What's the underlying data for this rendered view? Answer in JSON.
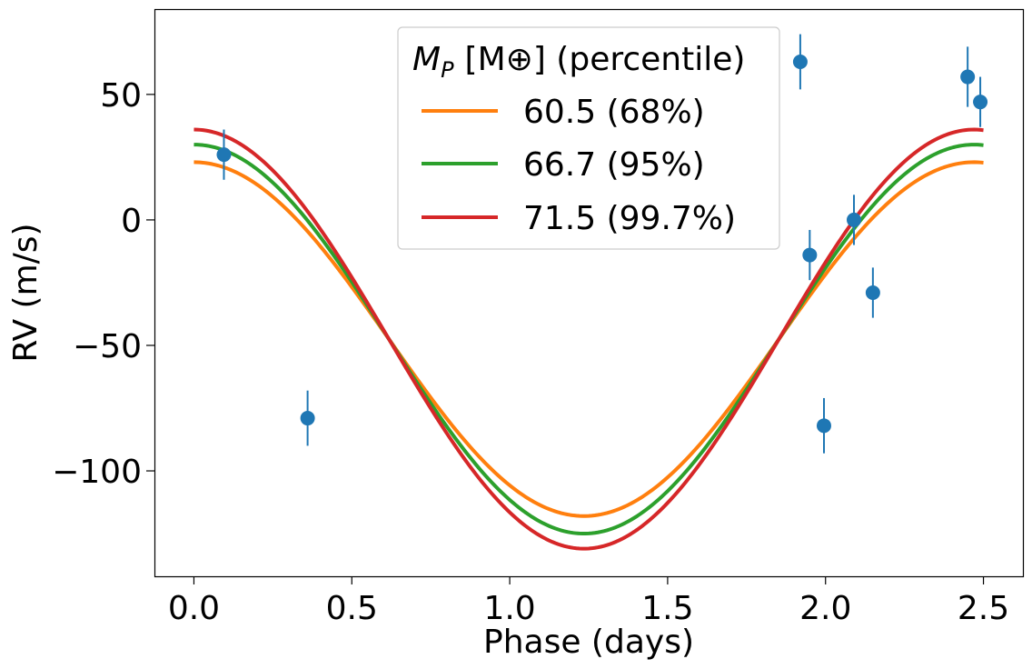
{
  "chart_data": {
    "type": "scatter",
    "xlabel": "Phase (days)",
    "ylabel": "RV (m/s)",
    "xlim": [
      -0.125,
      2.625
    ],
    "ylim": [
      -142,
      84
    ],
    "xticks": [
      0.0,
      0.5,
      1.0,
      1.5,
      2.0,
      2.5
    ],
    "xtick_labels": [
      "0.0",
      "0.5",
      "1.0",
      "1.5",
      "2.0",
      "2.5"
    ],
    "yticks": [
      -100,
      -50,
      0,
      50
    ],
    "ytick_labels": [
      "−100",
      "−50",
      "0",
      "50"
    ],
    "grid": false,
    "legend": {
      "placement": "upper center",
      "title_symbol": "M",
      "title_subscript": "P",
      "title_rest": "[M⊕] (percentile)",
      "entries": [
        "60.5 (68%)",
        "66.7 (95%)",
        "71.5 (99.7%)"
      ]
    },
    "model": {
      "phase_peak": 2.47,
      "phase_min": 1.235,
      "x_start": 0.0,
      "x_end": 2.5
    },
    "series": [
      {
        "name": "60.5 (68%)",
        "kind": "line",
        "color": "#ff7f0e",
        "max": 23,
        "min": -118
      },
      {
        "name": "66.7 (95%)",
        "kind": "line",
        "color": "#2ca02c",
        "max": 30,
        "min": -125
      },
      {
        "name": "71.5 (99.7%)",
        "kind": "line",
        "color": "#d62728",
        "max": 36,
        "min": -131
      },
      {
        "kind": "errorbar",
        "color": "#1f77b4",
        "x": [
          0.095,
          0.36,
          1.92,
          1.95,
          1.995,
          2.09,
          2.15,
          2.45,
          2.49
        ],
        "y": [
          26,
          -79,
          63,
          -14,
          -82,
          0,
          -29,
          57,
          47
        ],
        "yerr": [
          10,
          11,
          11,
          10,
          11,
          10,
          10,
          12,
          10
        ]
      }
    ]
  }
}
